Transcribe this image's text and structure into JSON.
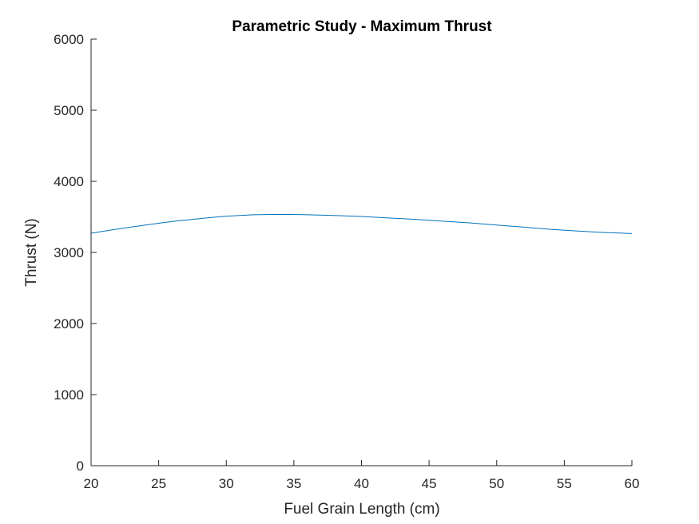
{
  "chart_data": {
    "type": "line",
    "title": "Parametric Study - Maximum Thrust",
    "xlabel": "Fuel Grain Length (cm)",
    "ylabel": "Thrust (N)",
    "xlim": [
      20,
      60
    ],
    "ylim": [
      0,
      6000
    ],
    "xticks": [
      20,
      25,
      30,
      35,
      40,
      45,
      50,
      55,
      60
    ],
    "yticks": [
      0,
      1000,
      2000,
      3000,
      4000,
      5000,
      6000
    ],
    "grid": false,
    "legend": "none",
    "line_color": "#0072BD",
    "series": [
      {
        "x": [
          20,
          22,
          24,
          26,
          28,
          30,
          32,
          34,
          36,
          38,
          40,
          42,
          44,
          46,
          48,
          50,
          52,
          54,
          56,
          58,
          60
        ],
        "y": [
          3270,
          3330,
          3385,
          3435,
          3475,
          3510,
          3530,
          3535,
          3530,
          3520,
          3505,
          3485,
          3465,
          3440,
          3415,
          3385,
          3355,
          3325,
          3300,
          3280,
          3265
        ]
      }
    ]
  }
}
